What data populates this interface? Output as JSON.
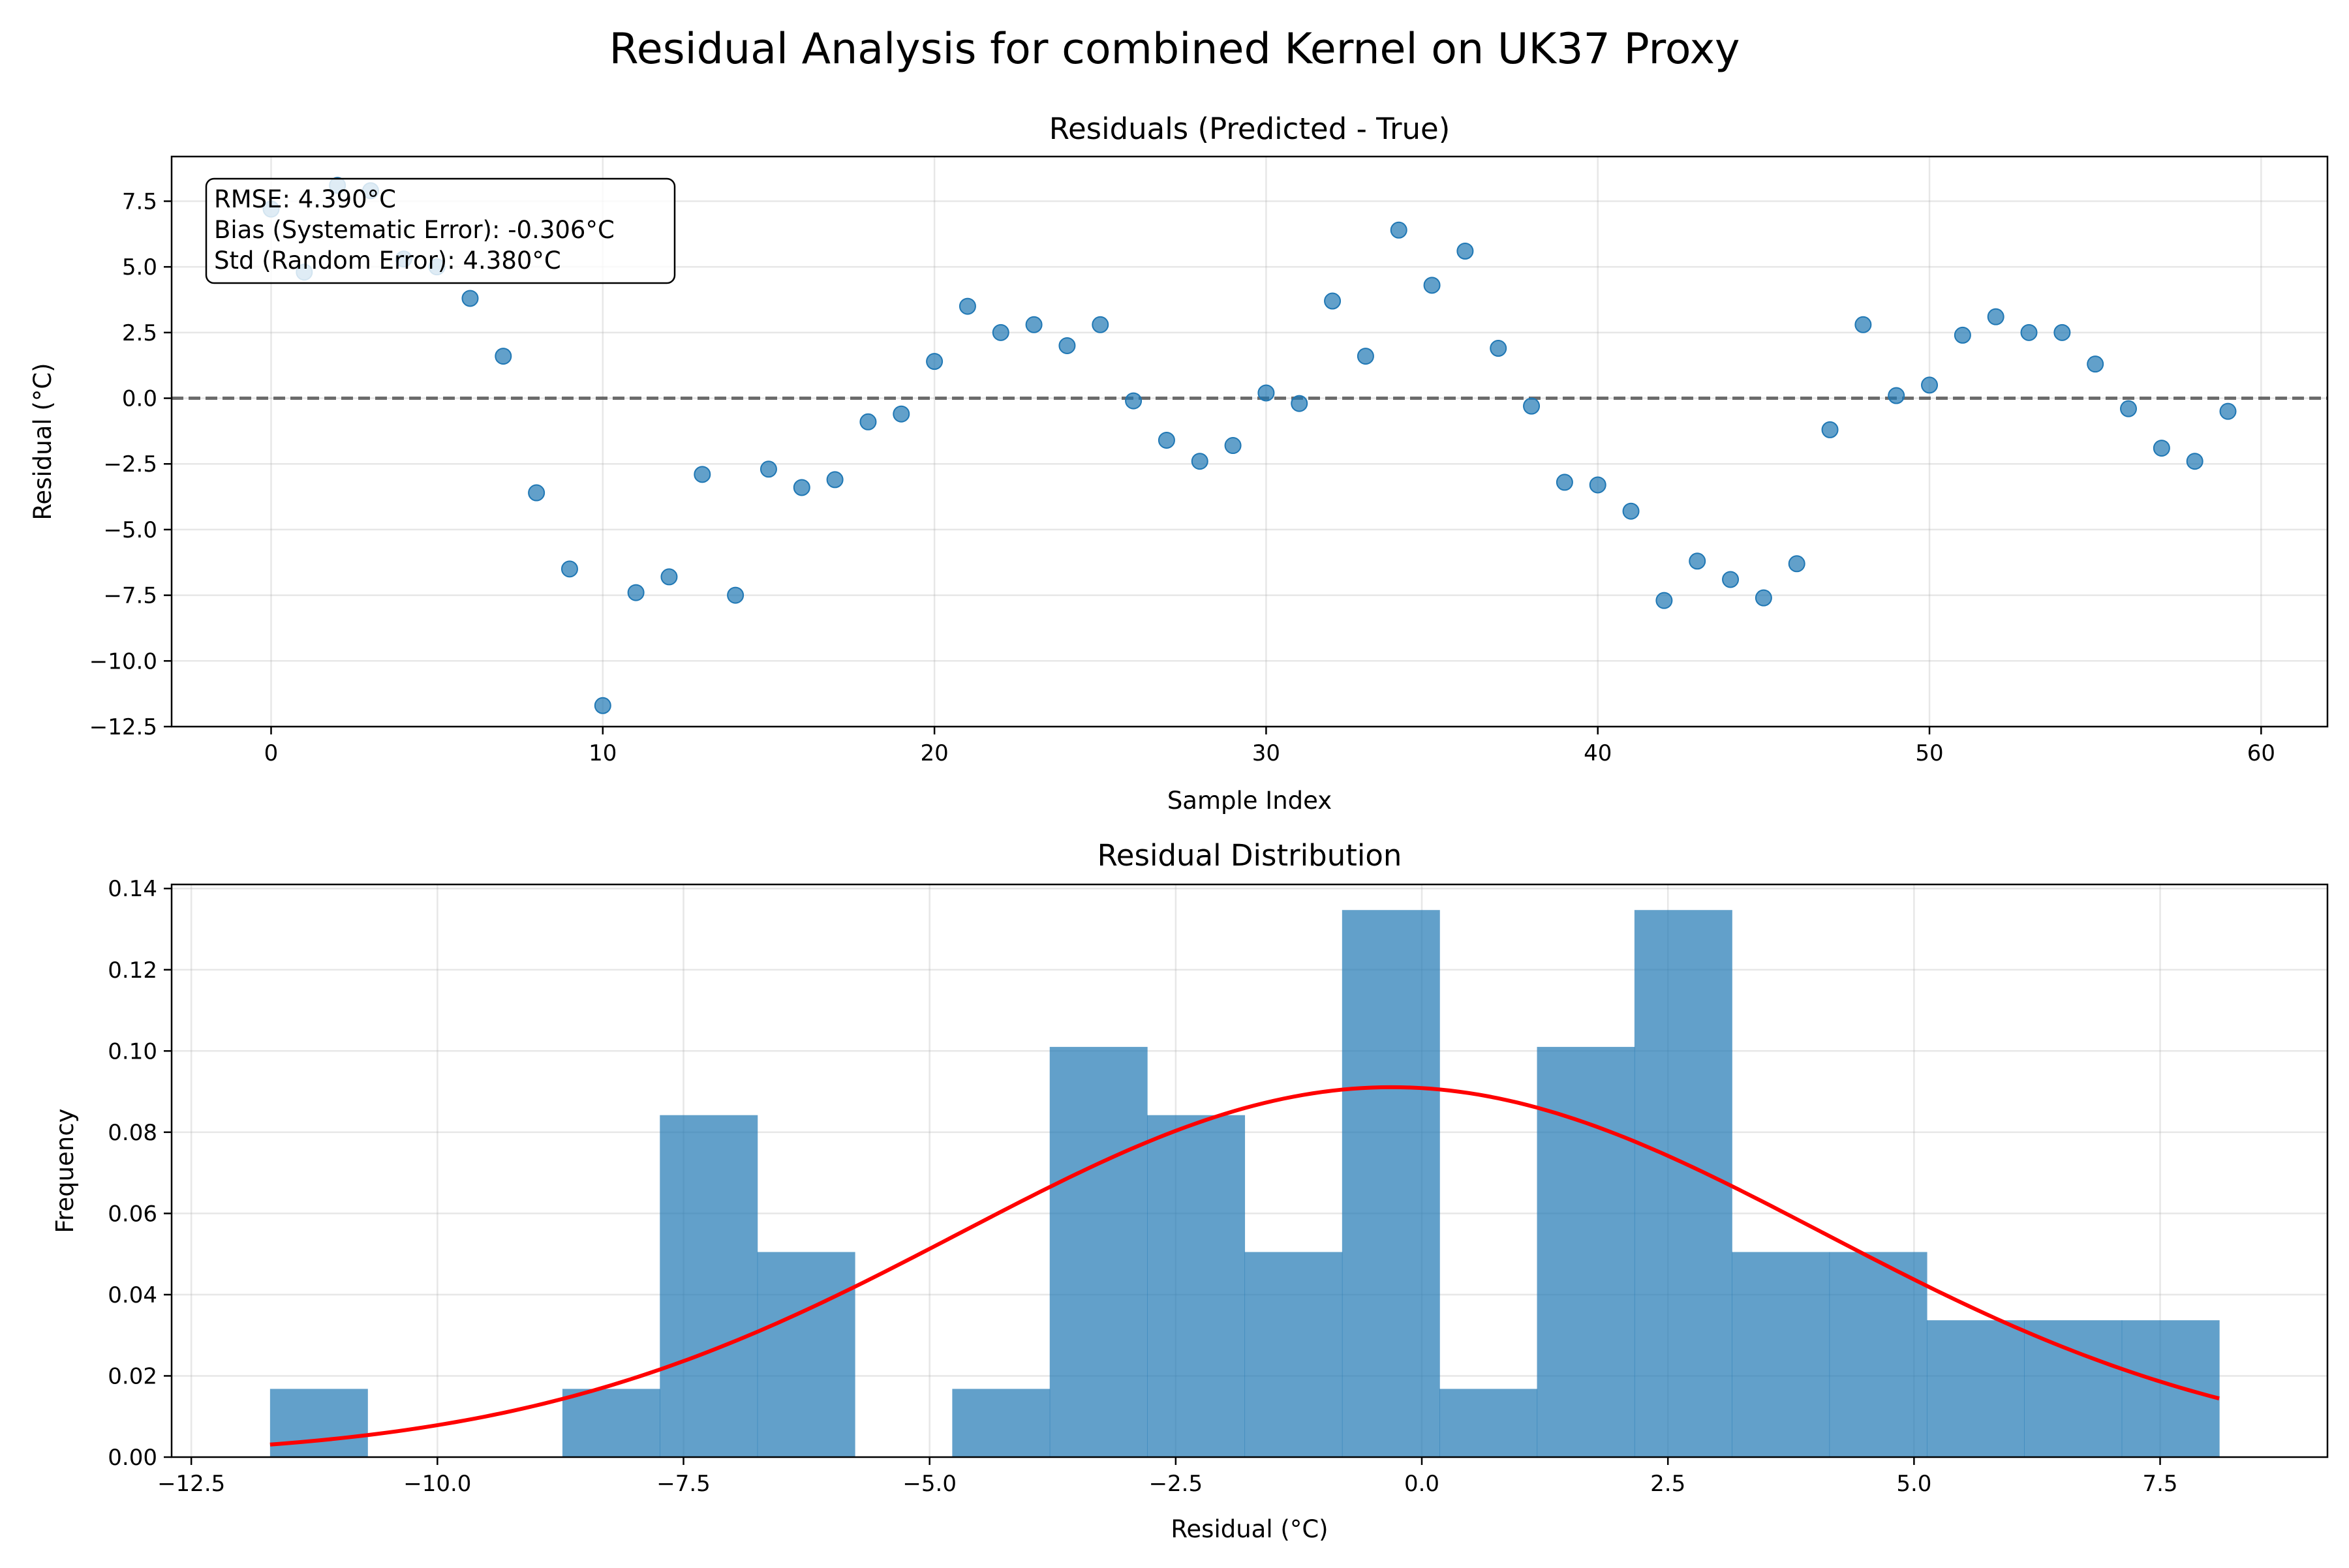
{
  "figure": {
    "suptitle": "Residual Analysis for combined Kernel on UK37 Proxy"
  },
  "colors": {
    "scatter": "#1f77b4",
    "bars": "#1f77b4",
    "normal_curve": "#ff0000",
    "zero_line": "#555555"
  },
  "chart_data": [
    {
      "type": "scatter",
      "title": "Residuals (Predicted - True)",
      "xlabel": "Sample Index",
      "ylabel": "Residual (°C)",
      "xlim": [
        -3,
        62
      ],
      "ylim": [
        -12.5,
        9.2
      ],
      "xticks": [
        0,
        10,
        20,
        30,
        40,
        50,
        60
      ],
      "xtick_labels": [
        "0",
        "10",
        "20",
        "30",
        "40",
        "50",
        "60"
      ],
      "yticks": [
        7.5,
        5.0,
        2.5,
        0.0,
        -2.5,
        -5.0,
        -7.5,
        -10.0,
        -12.5
      ],
      "ytick_labels": [
        "7.5",
        "5.0",
        "2.5",
        "0.0",
        "−2.5",
        "−5.0",
        "−7.5",
        "−10.0",
        "−12.5"
      ],
      "grid": true,
      "reference_line": {
        "y": 0,
        "style": "dashed"
      },
      "x": [
        0,
        1,
        2,
        3,
        4,
        5,
        6,
        7,
        8,
        9,
        10,
        11,
        12,
        13,
        14,
        15,
        16,
        17,
        18,
        19,
        20,
        21,
        22,
        23,
        24,
        25,
        26,
        27,
        28,
        29,
        30,
        31,
        32,
        33,
        34,
        35,
        36,
        37,
        38,
        39,
        40,
        41,
        42,
        43,
        44,
        45,
        46,
        47,
        48,
        49,
        50,
        51,
        52,
        53,
        54,
        55,
        56,
        57,
        58,
        59
      ],
      "y": [
        7.2,
        4.8,
        8.1,
        7.9,
        5.3,
        5.0,
        3.8,
        1.6,
        -3.6,
        -6.5,
        -11.7,
        -7.4,
        -6.8,
        -2.9,
        -7.5,
        -2.7,
        -3.4,
        -3.1,
        -0.9,
        -0.6,
        1.4,
        3.5,
        2.5,
        2.8,
        2.0,
        2.8,
        -0.1,
        -1.6,
        -2.4,
        -1.8,
        0.2,
        -0.2,
        3.7,
        1.6,
        6.4,
        4.3,
        5.6,
        1.9,
        -0.3,
        -3.2,
        -3.3,
        -4.3,
        -7.7,
        -6.2,
        -6.9,
        -7.6,
        -6.3,
        -1.2,
        2.8,
        0.1,
        0.5,
        2.4,
        3.1,
        2.5,
        2.5,
        1.3,
        -0.4,
        -1.9,
        -2.4,
        -0.5
      ],
      "annotation": {
        "placement": "top-left",
        "lines": [
          "RMSE: 4.390°C",
          "Bias (Systematic Error): -0.306°C",
          "Std (Random Error): 4.380°C"
        ]
      }
    },
    {
      "type": "bar",
      "subtype": "histogram_with_normal_fit",
      "title": "Residual Distribution",
      "xlabel": "Residual (°C)",
      "ylabel": "Frequency",
      "xlim": [
        -12.7,
        9.2
      ],
      "ylim": [
        0,
        0.141
      ],
      "xticks": [
        -12.5,
        -10.0,
        -7.5,
        -5.0,
        -2.5,
        0.0,
        2.5,
        5.0,
        7.5
      ],
      "xtick_labels": [
        "−12.5",
        "−10.0",
        "−7.5",
        "−5.0",
        "−2.5",
        "0.0",
        "2.5",
        "5.0",
        "7.5"
      ],
      "yticks": [
        0.0,
        0.02,
        0.04,
        0.06,
        0.08,
        0.1,
        0.12,
        0.14
      ],
      "ytick_labels": [
        "0.00",
        "0.02",
        "0.04",
        "0.06",
        "0.08",
        "0.10",
        "0.12",
        "0.14"
      ],
      "grid": true,
      "bin_edges": [
        -11.7,
        -10.71,
        -9.72,
        -8.73,
        -7.74,
        -6.75,
        -5.76,
        -4.77,
        -3.78,
        -2.79,
        -1.8,
        -0.81,
        0.18,
        1.17,
        2.16,
        3.15,
        4.14,
        5.13,
        6.12,
        7.11,
        8.1
      ],
      "values": [
        0.0168,
        0,
        0,
        0.0168,
        0.0842,
        0.0505,
        0,
        0.0168,
        0.101,
        0.0842,
        0.0505,
        0.1347,
        0.0168,
        0.101,
        0.1347,
        0.0505,
        0.0505,
        0.0337,
        0.0337,
        0.0337
      ],
      "normal_fit": {
        "mean": -0.306,
        "std": 4.38,
        "x_range": [
          -11.7,
          8.1
        ]
      }
    }
  ]
}
